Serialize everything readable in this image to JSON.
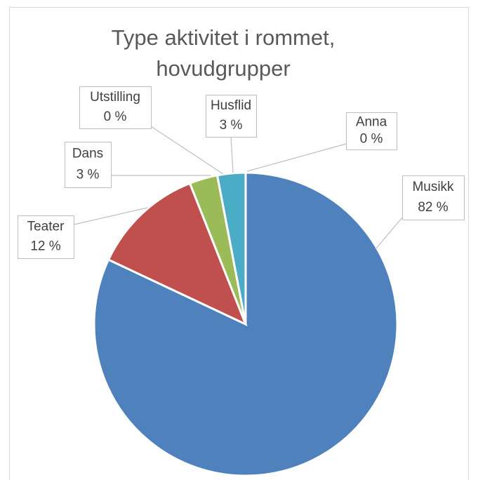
{
  "chart_data": {
    "type": "pie",
    "title": "Type aktivitet i rommet,",
    "subtitle": "hovudgrupper",
    "categories": [
      "Musikk",
      "Teater",
      "Dans",
      "Utstilling",
      "Husflid",
      "Anna"
    ],
    "values": [
      82,
      12,
      3,
      0,
      3,
      0
    ],
    "value_labels": [
      "82 %",
      "12 %",
      "3 %",
      "0 %",
      "3 %",
      "0 %"
    ],
    "colors": [
      "#4f81bd",
      "#c0504d",
      "#9bbb59",
      "#8064a2",
      "#4bacc6",
      "#f79646"
    ]
  }
}
